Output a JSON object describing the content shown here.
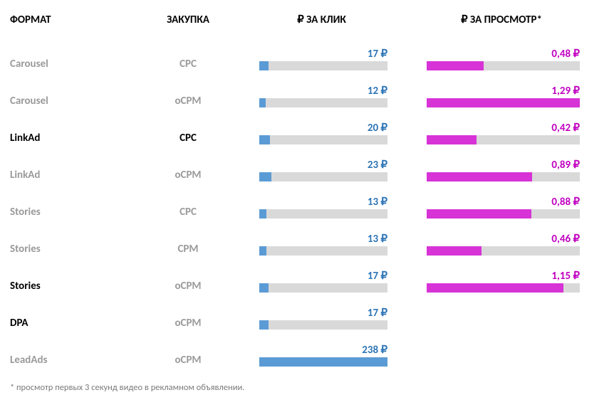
{
  "colors": {
    "text_black": "#000000",
    "text_gray": "#9a9a9a",
    "track": "#d9d9d9",
    "click_bar": "#5b9bd5",
    "click_val": "#2e75b6",
    "view_bar": "#d733d7",
    "view_val": "#c000c0",
    "footnote": "#7a7a7a",
    "bg": "#ffffff"
  },
  "headers": {
    "format": "ФОРМАТ",
    "buy": "ЗАКУПКА",
    "click": "₽ ЗА КЛИК",
    "view": "₽ ЗА ПРОСМОТР*"
  },
  "click_max": 238,
  "view_max": 1.29,
  "rows": [
    {
      "format": "Carousel",
      "format_gray": true,
      "buy": "CPC",
      "buy_gray": true,
      "click": 17,
      "click_disp": "17 ₽",
      "view": 0.48,
      "view_disp": "0,48 ₽"
    },
    {
      "format": "Carousel",
      "format_gray": true,
      "buy": "oCPM",
      "buy_gray": true,
      "click": 12,
      "click_disp": "12 ₽",
      "view": 1.29,
      "view_disp": "1,29 ₽"
    },
    {
      "format": "LinkAd",
      "format_gray": false,
      "buy": "CPC",
      "buy_gray": false,
      "click": 20,
      "click_disp": "20 ₽",
      "view": 0.42,
      "view_disp": "0,42 ₽"
    },
    {
      "format": "LinkAd",
      "format_gray": true,
      "buy": "oCPM",
      "buy_gray": true,
      "click": 23,
      "click_disp": "23 ₽",
      "view": 0.89,
      "view_disp": "0,89 ₽"
    },
    {
      "format": "Stories",
      "format_gray": true,
      "buy": "CPC",
      "buy_gray": true,
      "click": 13,
      "click_disp": "13 ₽",
      "view": 0.88,
      "view_disp": "0,88 ₽"
    },
    {
      "format": "Stories",
      "format_gray": true,
      "buy": "CPM",
      "buy_gray": true,
      "click": 13,
      "click_disp": "13 ₽",
      "view": 0.46,
      "view_disp": "0,46 ₽"
    },
    {
      "format": "Stories",
      "format_gray": false,
      "buy": "oCPM",
      "buy_gray": true,
      "click": 17,
      "click_disp": "17 ₽",
      "view": 1.15,
      "view_disp": "1,15 ₽"
    },
    {
      "format": "DPA",
      "format_gray": false,
      "buy": "oCPM",
      "buy_gray": true,
      "click": 17,
      "click_disp": "17 ₽",
      "view": null,
      "view_disp": null
    },
    {
      "format": "LeadAds",
      "format_gray": true,
      "buy": "oCPM",
      "buy_gray": true,
      "click": 238,
      "click_disp": "238 ₽",
      "view": null,
      "view_disp": null
    }
  ],
  "footnote": "* просмотр первых 3 секунд видео в рекламном объявлении."
}
